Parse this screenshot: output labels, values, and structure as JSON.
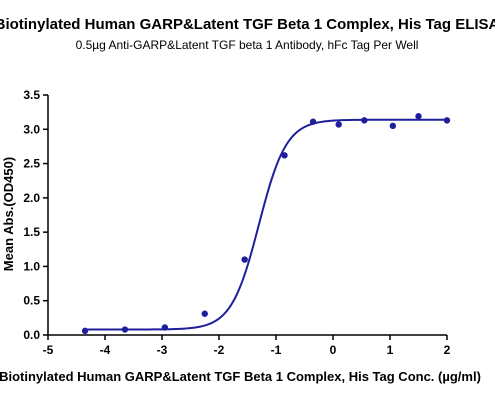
{
  "chart_data": {
    "type": "scatter",
    "title": "Biotinylated Human GARP&Latent TGF Beta 1 Complex, His Tag ELISA",
    "subtitle": "0.5µg Anti-GARP&Latent TGF beta 1 Antibody, hFc Tag Per Well",
    "xlabel": "Biotinylated Human GARP&Latent TGF Beta 1 Complex, His Tag Conc. (µg/ml)",
    "ylabel": "Mean Abs.(OD450)",
    "xlim": [
      -5,
      2
    ],
    "ylim": [
      0,
      3.5
    ],
    "xticks": [
      "-5",
      "-4",
      "-3",
      "-2",
      "-1",
      "0",
      "1",
      "2"
    ],
    "yticks": [
      "0.0",
      "0.5",
      "1.0",
      "1.5",
      "2.0",
      "2.5",
      "3.0",
      "3.5"
    ],
    "colors": {
      "series": "#1f1f9e",
      "axis": "#000000"
    },
    "series": [
      {
        "x": [
          -4.35,
          -3.65,
          -2.95,
          -2.25,
          -1.55,
          -0.85,
          -0.35,
          0.1,
          0.55,
          1.05,
          1.5,
          2.0
        ],
        "y": [
          0.06,
          0.08,
          0.11,
          0.31,
          1.1,
          2.62,
          3.11,
          3.07,
          3.13,
          3.05,
          3.19,
          3.13
        ]
      }
    ],
    "fit": {
      "bottom": 0.08,
      "top": 3.14,
      "logEC50": -1.3,
      "hill": 1.8
    }
  }
}
